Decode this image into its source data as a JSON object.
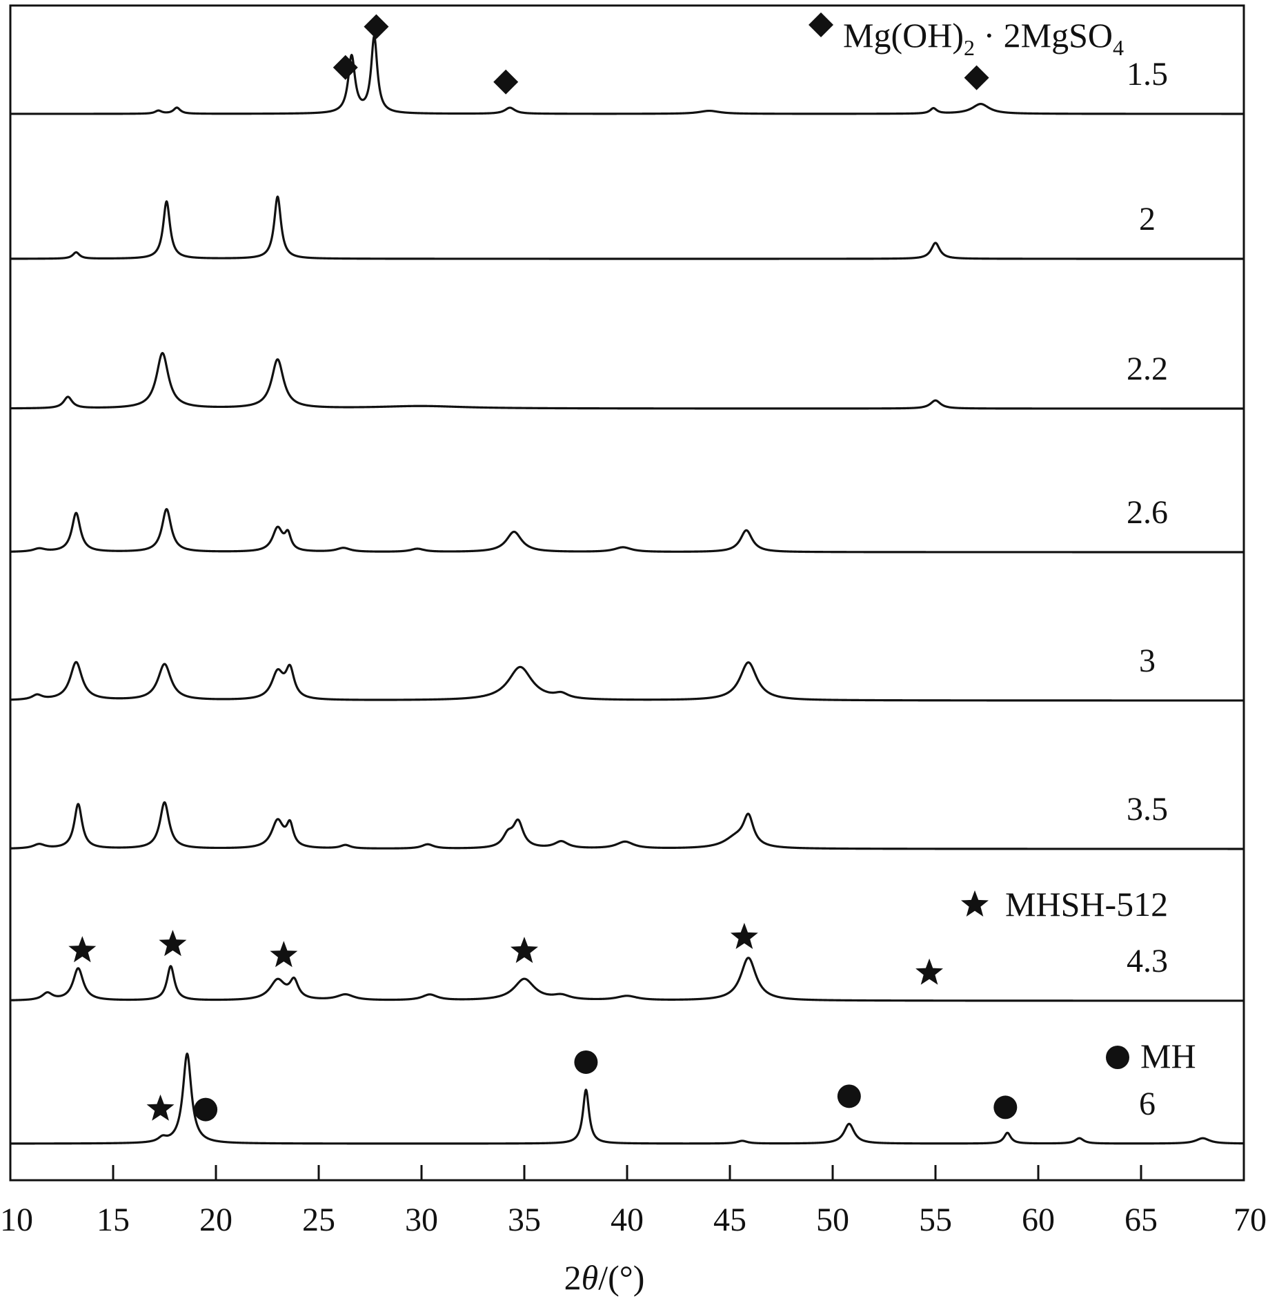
{
  "chart_data": {
    "type": "line",
    "xlabel_parts": [
      "2",
      "θ",
      "/(°)"
    ],
    "xlim": [
      10,
      70
    ],
    "x_ticks": [
      10,
      15,
      20,
      25,
      30,
      35,
      40,
      45,
      50,
      55,
      60,
      65,
      70
    ],
    "y_ticks": [],
    "grid": false,
    "legend": [
      {
        "marker": "diamond",
        "text_parts": [
          "Mg(OH)",
          "2",
          " · 2MgSO",
          "4"
        ],
        "placement": "top-right"
      },
      {
        "marker": "star",
        "text": "MHSH-512",
        "placement": "right, above 4.3 pattern"
      },
      {
        "marker": "circle",
        "text": "MH",
        "placement": "right, above 6 pattern"
      }
    ],
    "series": [
      {
        "name": "1.5",
        "peaks": [
          [
            17.2,
            4,
            0.2
          ],
          [
            18.1,
            8,
            0.2
          ],
          [
            26.6,
            75,
            0.2
          ],
          [
            27.7,
            100,
            0.18
          ],
          [
            34.3,
            8,
            0.3
          ],
          [
            44.0,
            4,
            0.6
          ],
          [
            54.9,
            7,
            0.2
          ],
          [
            57.2,
            13,
            0.5
          ]
        ],
        "markers": [
          {
            "type": "diamond",
            "x": 26.3
          },
          {
            "type": "diamond",
            "x": 27.8
          },
          {
            "type": "diamond",
            "x": 34.1
          },
          {
            "type": "diamond",
            "x": 57.0
          }
        ]
      },
      {
        "name": "2",
        "peaks": [
          [
            13.2,
            8,
            0.2
          ],
          [
            17.6,
            72,
            0.2
          ],
          [
            23.0,
            78,
            0.2
          ],
          [
            55.0,
            20,
            0.25
          ]
        ],
        "markers": []
      },
      {
        "name": "2.2",
        "peaks": [
          [
            12.8,
            14,
            0.25
          ],
          [
            17.4,
            68,
            0.35
          ],
          [
            23.0,
            60,
            0.35
          ],
          [
            30.0,
            3,
            2.5
          ],
          [
            55.0,
            10,
            0.3
          ]
        ],
        "markers": []
      },
      {
        "name": "2.6",
        "peaks": [
          [
            11.4,
            4,
            0.35
          ],
          [
            13.2,
            50,
            0.25
          ],
          [
            17.6,
            55,
            0.27
          ],
          [
            23.0,
            30,
            0.3
          ],
          [
            23.5,
            20,
            0.18
          ],
          [
            26.2,
            5,
            0.4
          ],
          [
            29.8,
            4,
            0.4
          ],
          [
            34.5,
            26,
            0.45
          ],
          [
            39.8,
            6,
            0.5
          ],
          [
            45.8,
            28,
            0.35
          ]
        ],
        "markers": []
      },
      {
        "name": "3",
        "peaks": [
          [
            11.3,
            5,
            0.3
          ],
          [
            13.2,
            40,
            0.35
          ],
          [
            17.5,
            38,
            0.38
          ],
          [
            23.0,
            28,
            0.35
          ],
          [
            23.6,
            30,
            0.25
          ],
          [
            34.8,
            35,
            0.7
          ],
          [
            36.8,
            5,
            0.4
          ],
          [
            45.9,
            40,
            0.5
          ]
        ],
        "markers": []
      },
      {
        "name": "3.5",
        "peaks": [
          [
            11.4,
            5,
            0.35
          ],
          [
            13.3,
            52,
            0.23
          ],
          [
            17.5,
            54,
            0.27
          ],
          [
            23.0,
            32,
            0.35
          ],
          [
            23.6,
            25,
            0.2
          ],
          [
            26.3,
            4,
            0.3
          ],
          [
            30.3,
            5,
            0.35
          ],
          [
            34.2,
            14,
            0.3
          ],
          [
            34.7,
            30,
            0.3
          ],
          [
            36.8,
            8,
            0.4
          ],
          [
            39.9,
            8,
            0.5
          ],
          [
            45.3,
            12,
            0.7
          ],
          [
            45.9,
            34,
            0.3
          ]
        ],
        "markers": []
      },
      {
        "name": "4.3",
        "peaks": [
          [
            11.8,
            10,
            0.3
          ],
          [
            13.3,
            45,
            0.3
          ],
          [
            17.8,
            48,
            0.22
          ],
          [
            23.0,
            28,
            0.45
          ],
          [
            23.8,
            25,
            0.25
          ],
          [
            26.3,
            8,
            0.5
          ],
          [
            30.4,
            8,
            0.45
          ],
          [
            35.0,
            30,
            0.6
          ],
          [
            36.8,
            6,
            0.5
          ],
          [
            40.0,
            6,
            0.6
          ],
          [
            45.9,
            60,
            0.45
          ]
        ],
        "markers": [
          {
            "type": "star",
            "x": 13.5
          },
          {
            "type": "star",
            "x": 17.9
          },
          {
            "type": "star",
            "x": 23.3
          },
          {
            "type": "star",
            "x": 35.0
          },
          {
            "type": "star",
            "x": 45.7
          },
          {
            "type": "star",
            "x": 54.7
          }
        ]
      },
      {
        "name": "6",
        "peaks": [
          [
            17.4,
            5,
            0.25
          ],
          [
            18.6,
            100,
            0.25
          ],
          [
            38.0,
            60,
            0.18
          ],
          [
            45.6,
            3,
            0.3
          ],
          [
            50.8,
            22,
            0.3
          ],
          [
            58.5,
            12,
            0.2
          ],
          [
            62.0,
            6,
            0.25
          ],
          [
            68.0,
            6,
            0.4
          ]
        ],
        "markers": [
          {
            "type": "star",
            "x": 17.3
          },
          {
            "type": "circle",
            "x": 19.5
          },
          {
            "type": "circle",
            "x": 38.0
          },
          {
            "type": "circle",
            "x": 50.8
          },
          {
            "type": "circle",
            "x": 58.4
          }
        ]
      }
    ]
  }
}
